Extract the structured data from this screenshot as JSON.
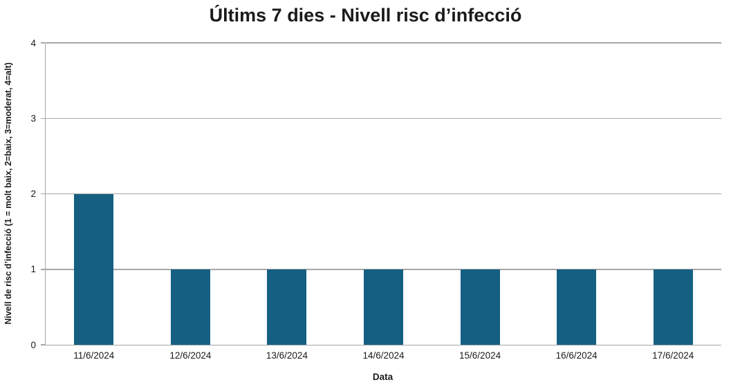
{
  "chart_data": {
    "type": "bar",
    "title": "Últims 7 dies - Nivell risc d’infecció",
    "xlabel": "Data",
    "ylabel": "Nivell de risc d’infecció (1 = molt baix, 2=baix, 3=moderat, 4=alt)",
    "categories": [
      "11/6/2024",
      "12/6/2024",
      "13/6/2024",
      "14/6/2024",
      "15/6/2024",
      "16/6/2024",
      "17/6/2024"
    ],
    "values": [
      2,
      1,
      1,
      1,
      1,
      1,
      1
    ],
    "ylim": [
      0,
      4
    ],
    "yticks": [
      0,
      1,
      2,
      3,
      4
    ],
    "grid": true,
    "legend": "none",
    "colors": {
      "bar": "#156082",
      "gridline": "#a6a6a6",
      "axis": "#a6a6a6",
      "text": "#1a1a1a"
    }
  }
}
